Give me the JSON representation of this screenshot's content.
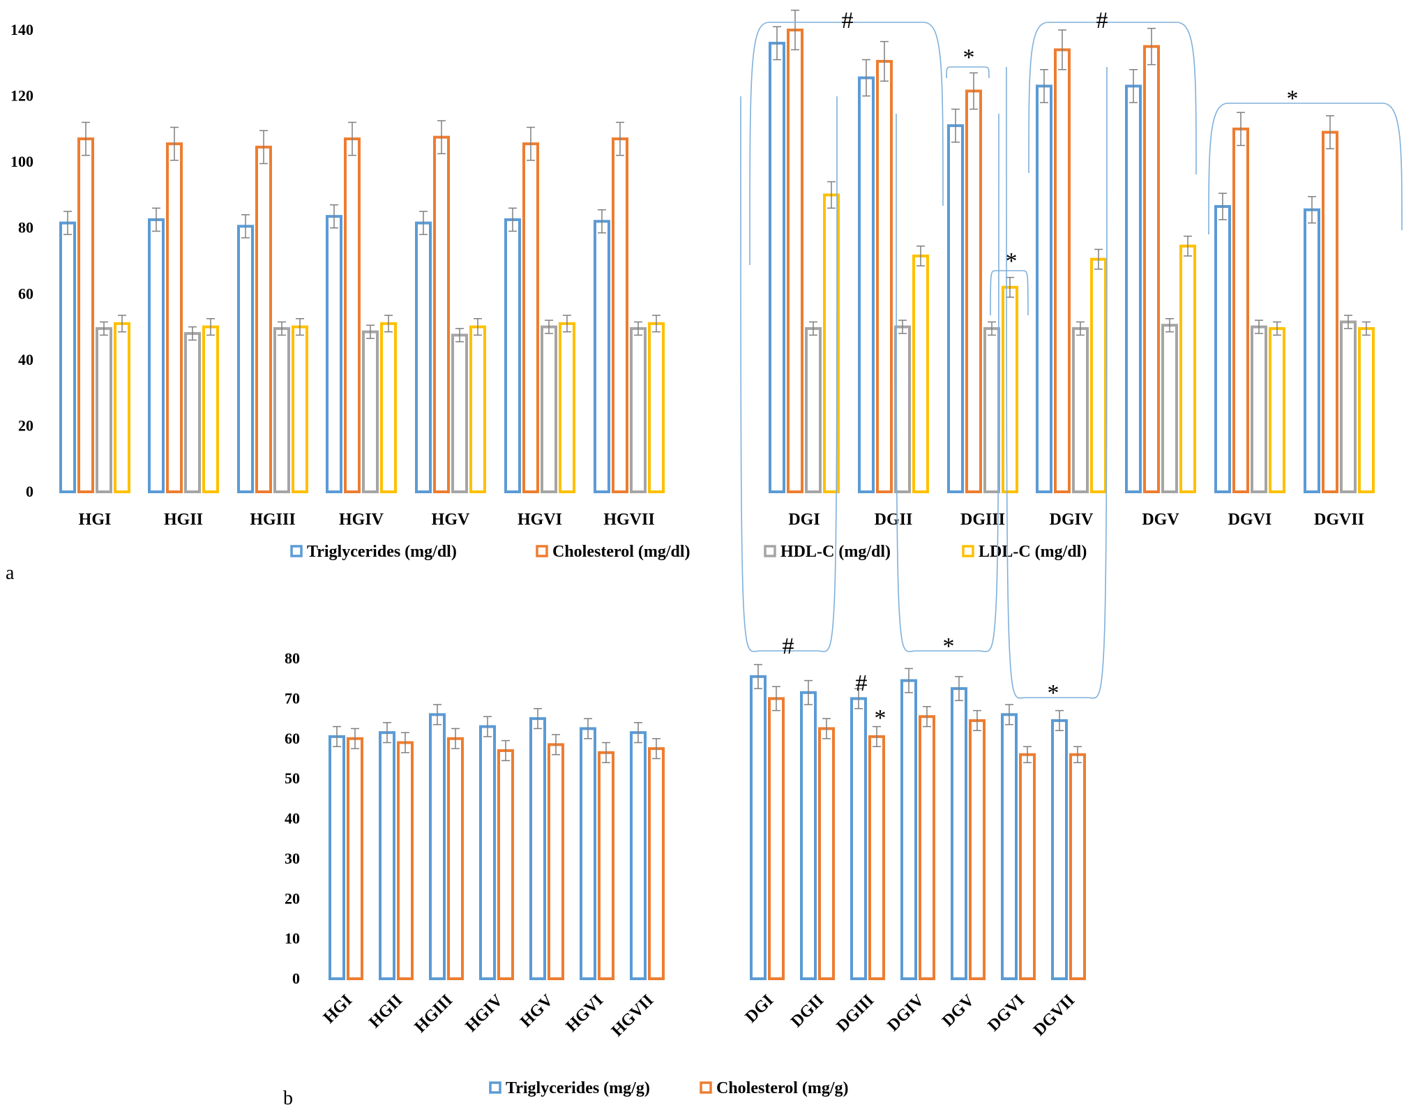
{
  "chart_data": [
    {
      "type": "bar",
      "panel_label": "a",
      "categories": [
        "HGI",
        "HGII",
        "HGIII",
        "HGIV",
        "HGV",
        "HGVI",
        "HGVII",
        "DGI",
        "DGII",
        "DGIII",
        "DGIV",
        "DGV",
        "DGVI",
        "DGVII"
      ],
      "ylim": [
        0,
        140
      ],
      "yticks": [
        0,
        20,
        40,
        60,
        80,
        100,
        120,
        140
      ],
      "xlabel": "",
      "ylabel": "",
      "legend_position": "bottom",
      "series": [
        {
          "name": "Triglycerides (mg/dl)",
          "color": "#5B9BD5",
          "values": [
            81.5,
            82.5,
            80.5,
            83.5,
            81.5,
            82.5,
            82,
            136,
            125.5,
            111,
            123,
            123,
            86.5,
            85.5
          ],
          "errors": [
            3.5,
            3.5,
            3.5,
            3.5,
            3.5,
            3.5,
            3.5,
            5,
            5.5,
            5,
            5,
            5,
            4,
            4
          ]
        },
        {
          "name": "Cholesterol (mg/dl)",
          "color": "#ED7D31",
          "values": [
            107,
            105.5,
            104.5,
            107,
            107.5,
            105.5,
            107,
            140,
            130.5,
            121.5,
            134,
            135,
            110,
            109
          ],
          "errors": [
            5,
            5,
            5,
            5,
            5,
            5,
            5,
            6,
            6,
            5.5,
            6,
            5.5,
            5,
            5
          ]
        },
        {
          "name": "HDL-C (mg/dl)",
          "color": "#A5A5A5",
          "values": [
            49.5,
            48,
            49.5,
            48.5,
            47.5,
            50,
            49.5,
            49.5,
            50,
            49.5,
            49.5,
            50.5,
            50,
            51.5
          ],
          "errors": [
            2,
            2,
            2,
            2,
            2,
            2,
            2,
            2,
            2,
            2,
            2,
            2,
            2,
            2
          ]
        },
        {
          "name": "LDL-C (mg/dl)",
          "color": "#FFC000",
          "values": [
            51,
            50,
            50,
            51,
            50,
            51,
            51,
            90,
            71.5,
            62,
            70.5,
            74.5,
            49.5,
            49.5
          ],
          "errors": [
            2.5,
            2.5,
            2.5,
            2.5,
            2.5,
            2.5,
            2.5,
            4,
            3,
            3,
            3,
            3,
            2,
            2
          ]
        }
      ],
      "annotations": [
        "#",
        "*",
        "*",
        "#",
        "*"
      ]
    },
    {
      "type": "bar",
      "panel_label": "b",
      "categories": [
        "HGI",
        "HGII",
        "HGIII",
        "HGIV",
        "HGV",
        "HGVI",
        "HGVII",
        "DGI",
        "DGII",
        "DGIII",
        "DGIV",
        "DGV",
        "DGVI",
        "DGVII"
      ],
      "ylim": [
        0,
        80
      ],
      "yticks": [
        0,
        10,
        20,
        30,
        40,
        50,
        60,
        70,
        80
      ],
      "xlabel": "",
      "ylabel": "",
      "legend_position": "bottom",
      "series": [
        {
          "name": "Triglycerides (mg/g)",
          "color": "#5B9BD5",
          "values": [
            60.5,
            61.5,
            66,
            63,
            65,
            62.5,
            61.5,
            75.5,
            71.5,
            70,
            74.5,
            72.5,
            66,
            64.5
          ],
          "errors": [
            2.5,
            2.5,
            2.5,
            2.5,
            2.5,
            2.5,
            2.5,
            3,
            3,
            2.5,
            3,
            3,
            2.5,
            2.5
          ]
        },
        {
          "name": "Cholesterol (mg/g)",
          "color": "#ED7D31",
          "values": [
            60,
            59,
            60,
            57,
            58.5,
            56.5,
            57.5,
            70,
            62.5,
            60.5,
            65.5,
            64.5,
            56,
            56
          ],
          "errors": [
            2.5,
            2.5,
            2.5,
            2.5,
            2.5,
            2.5,
            2.5,
            3,
            2.5,
            2.5,
            2.5,
            2.5,
            2,
            2
          ]
        }
      ],
      "annotations": [
        "#",
        "*",
        "*",
        "#",
        "*"
      ]
    }
  ]
}
